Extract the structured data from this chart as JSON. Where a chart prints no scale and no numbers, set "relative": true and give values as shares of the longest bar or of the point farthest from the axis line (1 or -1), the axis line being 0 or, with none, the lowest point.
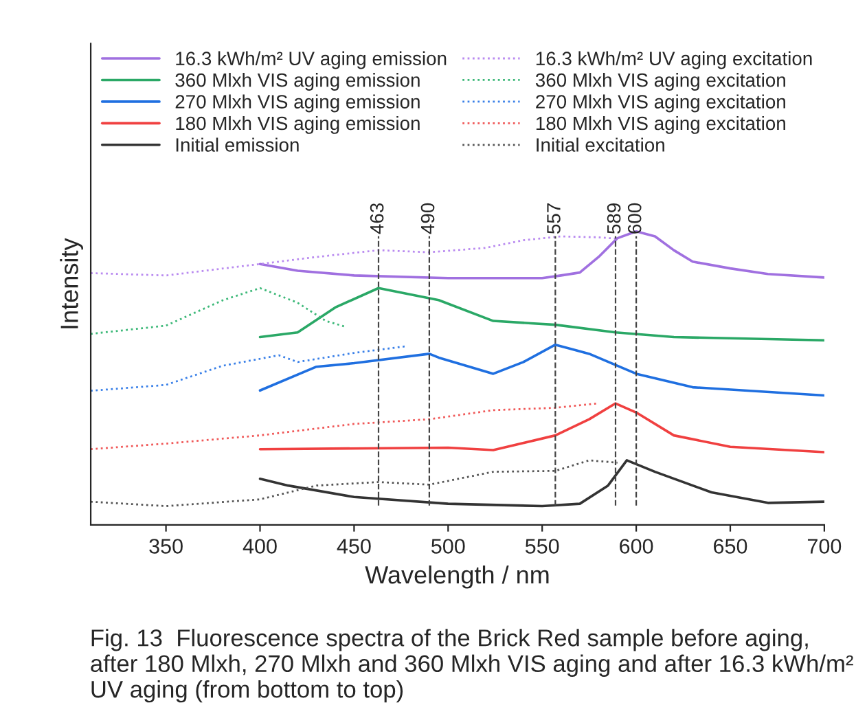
{
  "chart_data": {
    "type": "line",
    "relative": true,
    "xlabel": "Wavelength / nm",
    "ylabel": "Intensity",
    "xlim": [
      310,
      700
    ],
    "xticks": [
      350,
      400,
      450,
      500,
      550,
      600,
      650,
      700
    ],
    "legend": "top",
    "grid": false,
    "marker": "none",
    "tick_labels": "x",
    "series": [
      {
        "name": "16.3 kWh/m² UV aging emission",
        "color": "#a070e0",
        "line_style": "solid",
        "x": [
          400,
          420,
          450,
          500,
          550,
          560,
          570,
          580,
          590,
          600,
          610,
          620,
          630,
          650,
          670,
          700
        ],
        "values": [
          0.889,
          0.866,
          0.85,
          0.841,
          0.841,
          0.85,
          0.86,
          0.913,
          0.977,
          1.0,
          0.983,
          0.936,
          0.897,
          0.874,
          0.855,
          0.843
        ]
      },
      {
        "name": "360 Mlxh VIS aging emission",
        "color": "#2aa866",
        "line_style": "solid",
        "x": [
          400,
          420,
          440,
          463,
          495,
          524,
          544,
          557,
          589,
          620,
          700
        ],
        "values": [
          0.64,
          0.656,
          0.741,
          0.807,
          0.766,
          0.695,
          0.687,
          0.682,
          0.656,
          0.64,
          0.629
        ]
      },
      {
        "name": "270 Mlxh VIS aging emission",
        "color": "#1f6fe0",
        "line_style": "solid",
        "x": [
          400,
          430,
          450,
          490,
          495,
          524,
          540,
          557,
          575,
          600,
          630,
          700
        ],
        "values": [
          0.458,
          0.539,
          0.551,
          0.583,
          0.57,
          0.515,
          0.555,
          0.614,
          0.583,
          0.515,
          0.469,
          0.441
        ]
      },
      {
        "name": "180 Mlxh VIS aging emission",
        "color": "#f04040",
        "line_style": "solid",
        "x": [
          400,
          500,
          524,
          557,
          575,
          589,
          600,
          620,
          650,
          700
        ],
        "values": [
          0.258,
          0.263,
          0.255,
          0.305,
          0.36,
          0.414,
          0.383,
          0.305,
          0.266,
          0.248
        ]
      },
      {
        "name": "Initial emission",
        "color": "#333333",
        "line_style": "solid",
        "x": [
          400,
          415,
          450,
          500,
          550,
          570,
          585,
          595,
          610,
          640,
          670,
          700
        ],
        "values": [
          0.157,
          0.134,
          0.095,
          0.072,
          0.064,
          0.072,
          0.134,
          0.22,
          0.181,
          0.111,
          0.075,
          0.079
        ]
      },
      {
        "name": "16.3 kWh/m² UV aging excitation",
        "color": "#b98af0",
        "line_style": "dotted",
        "x": [
          310,
          350,
          400,
          430,
          463,
          490,
          520,
          540,
          560,
          580,
          590
        ],
        "values": [
          0.858,
          0.85,
          0.889,
          0.913,
          0.936,
          0.929,
          0.944,
          0.97,
          0.983,
          0.98,
          0.975
        ]
      },
      {
        "name": "360 Mlxh VIS aging excitation",
        "color": "#3cb878",
        "line_style": "dotted",
        "x": [
          310,
          350,
          380,
          400,
          420,
          435,
          445
        ],
        "values": [
          0.651,
          0.679,
          0.765,
          0.807,
          0.757,
          0.695,
          0.676
        ]
      },
      {
        "name": "270 Mlxh VIS aging excitation",
        "color": "#3a80e8",
        "line_style": "dotted",
        "x": [
          310,
          350,
          380,
          410,
          420,
          450,
          478
        ],
        "values": [
          0.457,
          0.477,
          0.542,
          0.578,
          0.555,
          0.586,
          0.609
        ]
      },
      {
        "name": "180 Mlxh VIS aging excitation",
        "color": "#f05858",
        "line_style": "dotted",
        "x": [
          310,
          350,
          400,
          450,
          490,
          524,
          557,
          580
        ],
        "values": [
          0.258,
          0.277,
          0.305,
          0.344,
          0.36,
          0.391,
          0.399,
          0.414
        ]
      },
      {
        "name": "Initial excitation",
        "color": "#555555",
        "line_style": "dotted",
        "x": [
          310,
          350,
          400,
          430,
          463,
          490,
          524,
          557,
          575,
          590
        ],
        "values": [
          0.079,
          0.064,
          0.087,
          0.134,
          0.146,
          0.137,
          0.181,
          0.184,
          0.22,
          0.212
        ]
      }
    ],
    "ref_lines": [
      {
        "axis": "x",
        "value": 463,
        "label": "463",
        "line_style": "dashed"
      },
      {
        "axis": "x",
        "value": 490,
        "label": "490",
        "line_style": "dashed"
      },
      {
        "axis": "x",
        "value": 557,
        "label": "557",
        "line_style": "dashed"
      },
      {
        "axis": "x",
        "value": 589,
        "label": "589",
        "line_style": "dashed"
      },
      {
        "axis": "x",
        "value": 600,
        "label": "600",
        "line_style": "dashed"
      }
    ],
    "annotations": [
      "Fig. 13  Fluorescence spectra of the Brick Red sample before aging, after 180 Mlxh, 270 Mlxh and 360 Mlxh VIS aging and after 16.3 kWh/m² UV aging (from bottom to top)"
    ]
  }
}
